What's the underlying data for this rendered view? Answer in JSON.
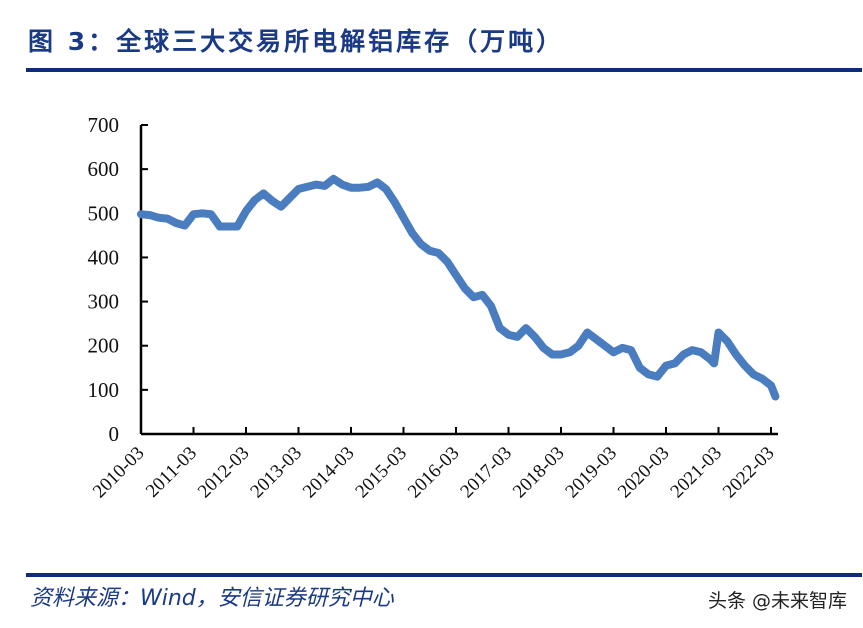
{
  "header": {
    "title": "图 3：全球三大交易所电解铝库存（万吨）"
  },
  "footer": {
    "source": "资料来源：Wind，安信证券研究中心",
    "watermark": "头条 @未来智库"
  },
  "colors": {
    "title": "#1a3a86",
    "rule": "#0c2d7a",
    "series": "#4a7cc0",
    "axis": "#000000"
  },
  "chart_data": {
    "type": "line",
    "title": "全球三大交易所电解铝库存（万吨）",
    "xlabel": "",
    "ylabel": "万吨",
    "ylim": [
      0,
      700
    ],
    "yticks": [
      0,
      100,
      200,
      300,
      400,
      500,
      600,
      700
    ],
    "xticks": [
      "2010-03",
      "2011-03",
      "2012-03",
      "2013-03",
      "2014-03",
      "2015-03",
      "2016-03",
      "2017-03",
      "2018-03",
      "2019-03",
      "2020-03",
      "2021-03",
      "2022-03"
    ],
    "grid": false,
    "legend": null,
    "series": [
      {
        "name": "全球三大交易所电解铝库存",
        "x": [
          "2010-03",
          "2010-05",
          "2010-07",
          "2010-09",
          "2010-11",
          "2011-01",
          "2011-03",
          "2011-05",
          "2011-07",
          "2011-09",
          "2011-11",
          "2012-01",
          "2012-03",
          "2012-05",
          "2012-07",
          "2012-09",
          "2012-11",
          "2013-01",
          "2013-03",
          "2013-05",
          "2013-07",
          "2013-09",
          "2013-11",
          "2014-01",
          "2014-03",
          "2014-05",
          "2014-07",
          "2014-09",
          "2014-11",
          "2015-01",
          "2015-03",
          "2015-05",
          "2015-07",
          "2015-09",
          "2015-11",
          "2016-01",
          "2016-03",
          "2016-05",
          "2016-07",
          "2016-09",
          "2016-11",
          "2017-01",
          "2017-03",
          "2017-05",
          "2017-07",
          "2017-09",
          "2017-11",
          "2018-01",
          "2018-03",
          "2018-05",
          "2018-07",
          "2018-09",
          "2018-11",
          "2019-01",
          "2019-03",
          "2019-05",
          "2019-07",
          "2019-09",
          "2019-11",
          "2020-01",
          "2020-03",
          "2020-05",
          "2020-07",
          "2020-09",
          "2020-11",
          "2021-01",
          "2021-02",
          "2021-03",
          "2021-05",
          "2021-07",
          "2021-09",
          "2021-11",
          "2022-01",
          "2022-03",
          "2022-04"
        ],
        "values": [
          498,
          496,
          490,
          488,
          478,
          472,
          498,
          500,
          498,
          470,
          470,
          470,
          505,
          530,
          545,
          528,
          515,
          535,
          555,
          560,
          565,
          562,
          578,
          565,
          558,
          558,
          560,
          570,
          555,
          525,
          490,
          455,
          430,
          415,
          410,
          390,
          360,
          330,
          310,
          315,
          290,
          240,
          225,
          220,
          240,
          220,
          195,
          180,
          180,
          185,
          200,
          230,
          215,
          200,
          185,
          195,
          190,
          150,
          135,
          130,
          155,
          160,
          180,
          190,
          185,
          170,
          160,
          230,
          210,
          180,
          155,
          135,
          125,
          110,
          85
        ]
      }
    ]
  }
}
